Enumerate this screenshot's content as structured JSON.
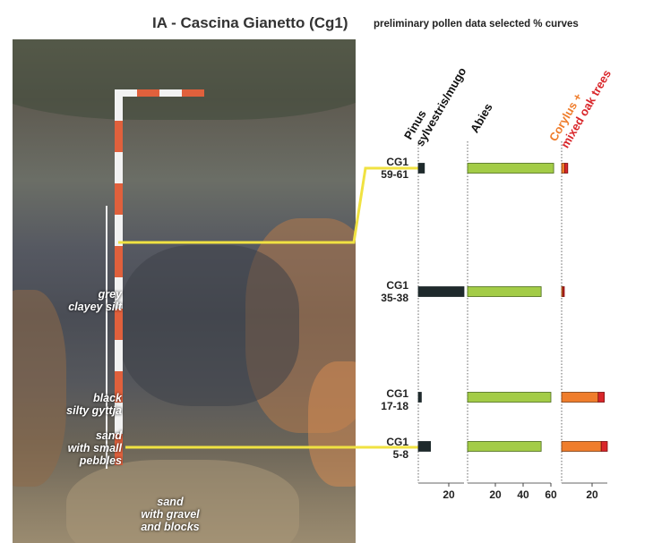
{
  "title": "IA - Cascina Gianetto (Cg1)",
  "subtitle": "preliminary pollen data selected % curves",
  "sediment_labels": {
    "grey_silt": [
      "grey",
      "clayey silt"
    ],
    "gyttja": [
      "black",
      "silty gyttja"
    ],
    "sand_pebbles": [
      "sand",
      "with small",
      "pebbles"
    ],
    "sand_gravel": [
      "sand",
      "with gravel",
      "and blocks"
    ]
  },
  "samples": [
    {
      "line1": "CG1",
      "line2": "59-61"
    },
    {
      "line1": "CG1",
      "line2": "35-38"
    },
    {
      "line1": "CG1",
      "line2": "17-18"
    },
    {
      "line1": "CG1",
      "line2": "5-8"
    }
  ],
  "colors": {
    "pinus": "#1f2a2c",
    "abies": "#a3cc47",
    "corylus": "#ef7d2c",
    "oak": "#d9262a",
    "marker_line": "#f0e242"
  },
  "chart_data": {
    "type": "bar",
    "categories": [
      "CG1 59-61",
      "CG1 35-38",
      "CG1 17-18",
      "CG1 5-8"
    ],
    "panels": [
      {
        "header": [
          "Pinus",
          "sylvestris/mugo"
        ],
        "header_color": "#111111",
        "xlim": [
          0,
          30
        ],
        "ticks": [
          20
        ],
        "series": [
          {
            "name": "Pinus sylvestris/mugo",
            "values": [
              4,
              30,
              2,
              8
            ]
          }
        ]
      },
      {
        "header": [
          "Abies"
        ],
        "header_color": "#111111",
        "xlim": [
          0,
          60
        ],
        "ticks": [
          20,
          40,
          60
        ],
        "series": [
          {
            "name": "Abies",
            "values": [
              62,
              53,
              60,
              53
            ]
          }
        ]
      },
      {
        "header": [
          "Corylus +",
          "mixed oak trees"
        ],
        "header_color": [
          "#ef7d2c",
          "#d9262a"
        ],
        "xlim": [
          0,
          30
        ],
        "ticks": [
          20
        ],
        "series": [
          {
            "name": "Corylus",
            "values": [
              2,
              0.5,
              24,
              26
            ]
          },
          {
            "name": "mixed oak trees",
            "values": [
              2,
              0.5,
              4,
              4
            ]
          }
        ]
      }
    ]
  }
}
